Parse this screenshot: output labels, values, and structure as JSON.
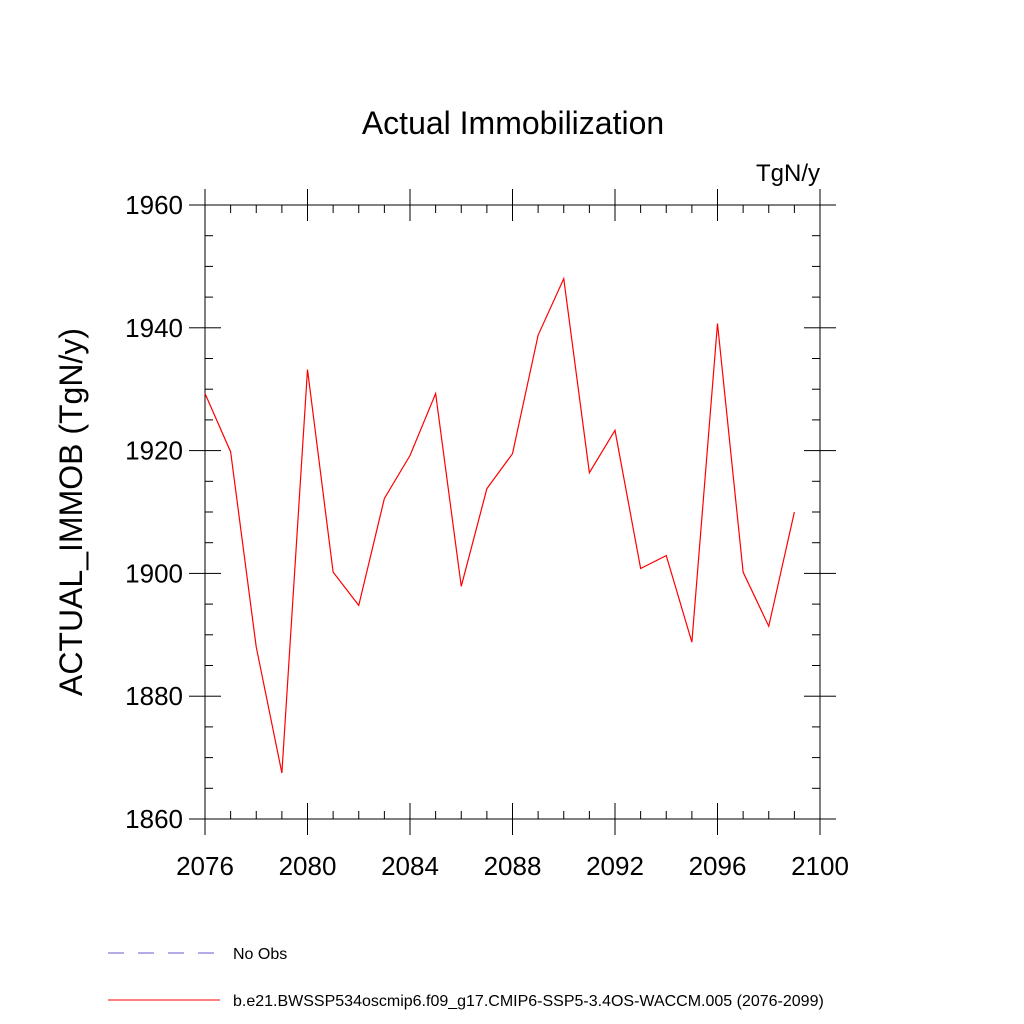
{
  "chart_data": {
    "type": "line",
    "title": "Actual Immobilization",
    "units_label": "TgN/y",
    "ylabel": "ACTUAL_IMMOB  (TgN/y)",
    "xlabel": "",
    "xlim": [
      2076,
      2100
    ],
    "ylim": [
      1860,
      1960
    ],
    "x_ticks": [
      2076,
      2080,
      2084,
      2088,
      2092,
      2096,
      2100
    ],
    "y_ticks": [
      1860,
      1880,
      1900,
      1920,
      1940,
      1960
    ],
    "grid": false,
    "legend_position": "bottom-left",
    "x": [
      2076,
      2077,
      2078,
      2079,
      2080,
      2081,
      2082,
      2083,
      2084,
      2085,
      2086,
      2087,
      2088,
      2089,
      2090,
      2091,
      2092,
      2093,
      2094,
      2095,
      2096,
      2097,
      2098,
      2099
    ],
    "series": [
      {
        "name": "b.e21.BWSSP534oscmip6.f09_g17.CMIP6-SSP5-3.4OS-WACCM.005 (2076-2099)",
        "color": "#ff0000",
        "values": [
          1929.3,
          1919.8,
          1888.0,
          1867.5,
          1933.2,
          1900.2,
          1894.8,
          1912.2,
          1919.2,
          1929.3,
          1897.9,
          1913.8,
          1919.5,
          1938.8,
          1948.0,
          1916.4,
          1923.3,
          1900.8,
          1902.9,
          1888.8,
          1940.7,
          1900.2,
          1891.4,
          1910.0
        ]
      }
    ],
    "legend": [
      {
        "label": "No Obs",
        "color": "#6a5acd",
        "style": "dashed"
      },
      {
        "label": "b.e21.BWSSP534oscmip6.f09_g17.CMIP6-SSP5-3.4OS-WACCM.005 (2076-2099)",
        "color": "#ff0000",
        "style": "solid"
      }
    ]
  }
}
